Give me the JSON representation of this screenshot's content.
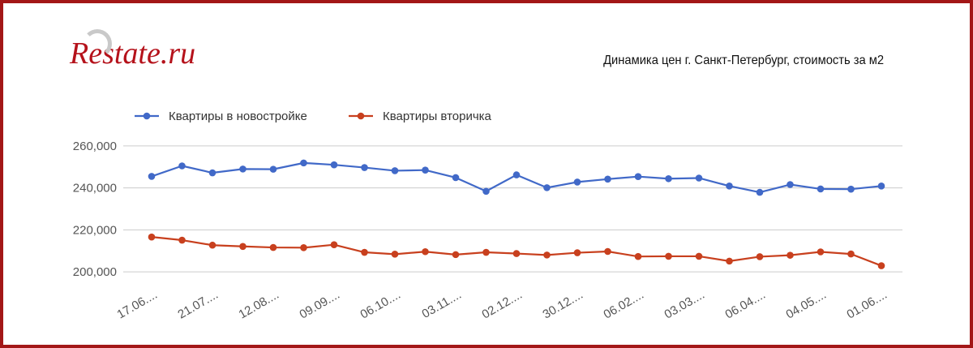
{
  "logo": {
    "text": "Restate.ru"
  },
  "title": "Динамика цен г. Санкт-Петербург, стоимость за м2",
  "colors": {
    "frame": "#a31717",
    "logo": "#b5121b",
    "series_new": "#4169c8",
    "series_secondary": "#c8401e",
    "grid": "#cccccc"
  },
  "chart_data": {
    "type": "line",
    "title": "Динамика цен г. Санкт-Петербург, стоимость за м2",
    "xlabel": "",
    "ylabel": "",
    "ylim": [
      195000,
      265000
    ],
    "yticks": [
      200000,
      220000,
      240000,
      260000
    ],
    "ytick_labels": [
      "200,000",
      "220,000",
      "240,000",
      "260,000"
    ],
    "xtick_labels": [
      "17.06....",
      "21.07....",
      "12.08....",
      "09.09....",
      "06.10....",
      "03.11....",
      "02.12....",
      "30.12....",
      "06.02....",
      "03.03....",
      "06.04....",
      "04.05....",
      "01.06...."
    ],
    "xtick_every": 2,
    "grid": true,
    "legend": "top-left",
    "series": [
      {
        "name": "Квартиры в новостройке",
        "color": "#4169c8",
        "values": [
          245500,
          250500,
          247200,
          249000,
          248900,
          251900,
          251000,
          249700,
          248200,
          248500,
          244900,
          238400,
          246200,
          240100,
          242800,
          244200,
          245400,
          244400,
          244700,
          240900,
          237900,
          241600,
          239500,
          239400,
          240900
        ]
      },
      {
        "name": "Квартиры вторичка",
        "color": "#c8401e",
        "values": [
          216600,
          215100,
          212700,
          212100,
          211600,
          211500,
          212900,
          209300,
          208400,
          209600,
          208200,
          209300,
          208700,
          208000,
          209100,
          209700,
          207300,
          207400,
          207400,
          205100,
          207200,
          207900,
          209500,
          208500,
          202900
        ]
      }
    ]
  }
}
